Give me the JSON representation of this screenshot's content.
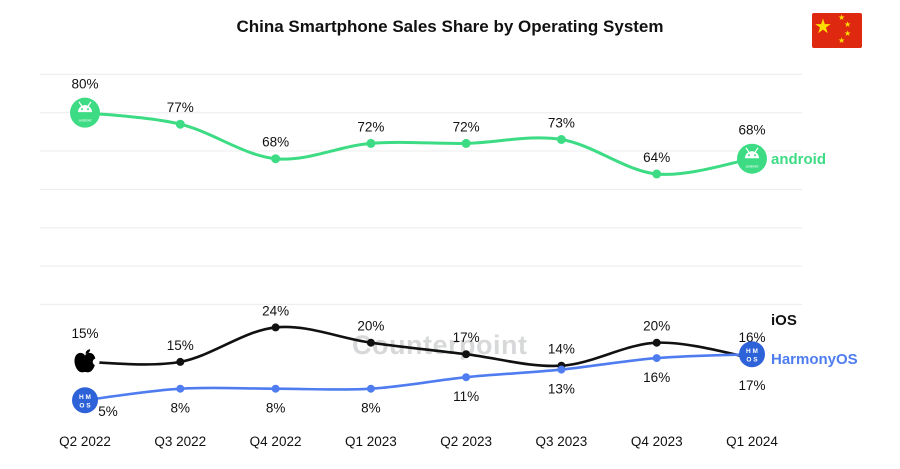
{
  "watermark": "Counterpoint",
  "chart_data": {
    "type": "line",
    "title": "China Smartphone Sales Share by Operating System",
    "categories": [
      "Q2 2022",
      "Q3 2022",
      "Q4 2022",
      "Q1 2023",
      "Q2 2023",
      "Q3 2023",
      "Q4 2023",
      "Q1 2024"
    ],
    "unit": "%",
    "ylim": [
      0,
      100
    ],
    "grid": "horizontal-light",
    "legend_position": "line-end",
    "series": [
      {
        "name": "Android",
        "end_label": "android",
        "color": "#3ddc84",
        "icon": "android-robot-badge",
        "values": [
          80,
          77,
          68,
          72,
          72,
          73,
          64,
          68
        ]
      },
      {
        "name": "iOS",
        "end_label": "iOS",
        "color": "#111111",
        "icon": "apple-logo",
        "values": [
          15,
          15,
          24,
          20,
          17,
          14,
          20,
          16
        ]
      },
      {
        "name": "HarmonyOS",
        "end_label": "HarmonyOS",
        "color": "#4f7df0",
        "icon_color": "#2e62d9",
        "icon": "harmonyos-badge",
        "values": [
          5,
          8,
          8,
          8,
          11,
          13,
          16,
          17
        ]
      }
    ]
  }
}
